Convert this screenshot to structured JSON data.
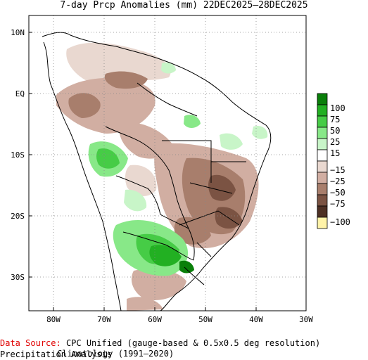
{
  "title": "7-day Prcp Anomalies (mm) 22DEC2025–28DEC2025",
  "axes": {
    "lat_labels": [
      "10N",
      "EQ",
      "10S",
      "20S",
      "30S"
    ],
    "lon_labels": [
      "80W",
      "70W",
      "60W",
      "50W",
      "40W",
      "30W"
    ]
  },
  "legend": {
    "labels": [
      "100",
      "75",
      "50",
      "25",
      "15",
      "−15",
      "−25",
      "−50",
      "−75",
      "−100"
    ],
    "colors": {
      "wet_100": "#0a7f0a",
      "wet_75": "#22b022",
      "wet_50": "#46cc46",
      "wet_25": "#88e888",
      "wet_15": "#c8f5c8",
      "neutral": "#ffffff",
      "dry_15": "#e9d8d0",
      "dry_25": "#d1aea2",
      "dry_50": "#a87e6c",
      "dry_75": "#7b5343",
      "dry_100": "#4d3024",
      "extreme_dry": "#fff3a8"
    }
  },
  "source": {
    "label": "Data Source:",
    "line1": "CPC Unified (gauge-based & 0.5x0.5 deg resolution) Precipitation Analysis",
    "line2": "Climatology (1991–2020)"
  }
}
